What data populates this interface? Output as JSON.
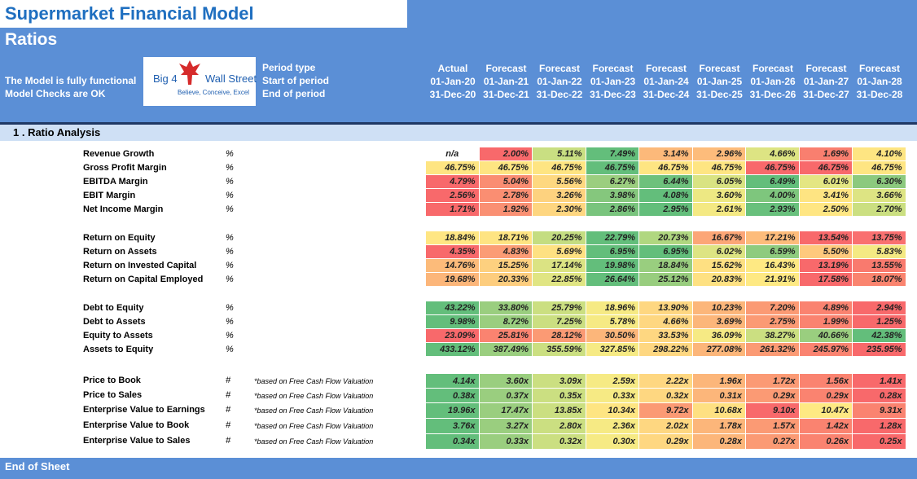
{
  "title": "Supermarket Financial Model",
  "subtitle": "Ratios",
  "status": [
    "The Model is fully functional",
    "Model Checks are OK"
  ],
  "logo": {
    "text_left": "Big 4",
    "text_right": "Wall Street",
    "tagline": "Believe, Conceive, Excel",
    "icon": "eagle-icon"
  },
  "period_labels": [
    "Period type",
    "Start of period",
    "End of period"
  ],
  "columns": [
    {
      "type": "Actual",
      "start": "01-Jan-20",
      "end": "31-Dec-20"
    },
    {
      "type": "Forecast",
      "start": "01-Jan-21",
      "end": "31-Dec-21"
    },
    {
      "type": "Forecast",
      "start": "01-Jan-22",
      "end": "31-Dec-22"
    },
    {
      "type": "Forecast",
      "start": "01-Jan-23",
      "end": "31-Dec-23"
    },
    {
      "type": "Forecast",
      "start": "01-Jan-24",
      "end": "31-Dec-24"
    },
    {
      "type": "Forecast",
      "start": "01-Jan-25",
      "end": "31-Dec-25"
    },
    {
      "type": "Forecast",
      "start": "01-Jan-26",
      "end": "31-Dec-26"
    },
    {
      "type": "Forecast",
      "start": "01-Jan-27",
      "end": "31-Dec-27"
    },
    {
      "type": "Forecast",
      "start": "01-Jan-28",
      "end": "31-Dec-28"
    }
  ],
  "section_title": "1 .  Ratio Analysis",
  "groups": [
    {
      "rows": [
        {
          "label": "Revenue Growth",
          "unit": "%",
          "note": "",
          "values": [
            "n/a",
            "2.00%",
            "5.11%",
            "7.49%",
            "3.14%",
            "2.96%",
            "4.66%",
            "1.69%",
            "4.10%"
          ],
          "colors": [
            "#ffffff",
            "#f8696b",
            "#c9df82",
            "#63be7b",
            "#fcb97a",
            "#fdbc7b",
            "#dde483",
            "#f97f6f",
            "#fee582"
          ]
        },
        {
          "label": "Gross Profit Margin",
          "unit": "%",
          "note": "",
          "values": [
            "46.75%",
            "46.75%",
            "46.75%",
            "46.75%",
            "46.75%",
            "46.75%",
            "46.75%",
            "46.75%",
            "46.75%"
          ],
          "colors": [
            "#fee582",
            "#fee582",
            "#fee582",
            "#63be7b",
            "#fee582",
            "#fee582",
            "#f8696b",
            "#f8696b",
            "#fee582"
          ]
        },
        {
          "label": "EBITDA Margin",
          "unit": "%",
          "note": "",
          "values": [
            "4.79%",
            "5.04%",
            "5.56%",
            "6.27%",
            "6.44%",
            "6.05%",
            "6.49%",
            "6.01%",
            "6.30%"
          ],
          "colors": [
            "#f8696b",
            "#fa8d72",
            "#fed880",
            "#9bce7f",
            "#6dc17c",
            "#d9e382",
            "#63be7b",
            "#e4e683",
            "#8cc97e"
          ]
        },
        {
          "label": "EBIT Margin",
          "unit": "%",
          "note": "",
          "values": [
            "2.56%",
            "2.78%",
            "3.26%",
            "3.98%",
            "4.08%",
            "3.60%",
            "4.00%",
            "3.41%",
            "3.66%"
          ],
          "colors": [
            "#f8696b",
            "#fa8e72",
            "#fdd27f",
            "#85c77d",
            "#63be7b",
            "#ede883",
            "#7ec67d",
            "#fee482",
            "#dde483"
          ]
        },
        {
          "label": "Net Income Margin",
          "unit": "%",
          "note": "",
          "values": [
            "1.71%",
            "1.92%",
            "2.30%",
            "2.86%",
            "2.95%",
            "2.61%",
            "2.93%",
            "2.50%",
            "2.70%"
          ],
          "colors": [
            "#f8696b",
            "#fa9073",
            "#fed680",
            "#79c47d",
            "#63be7b",
            "#f4e983",
            "#68c07c",
            "#ffe683",
            "#cbdf81"
          ]
        }
      ]
    },
    {
      "rows": [
        {
          "label": "Return on Equity",
          "unit": "%",
          "note": "",
          "values": [
            "18.84%",
            "18.71%",
            "20.25%",
            "22.79%",
            "20.73%",
            "16.67%",
            "17.21%",
            "13.54%",
            "13.75%"
          ],
          "colors": [
            "#ffe683",
            "#fee482",
            "#c4dd81",
            "#63be7b",
            "#b0d780",
            "#fca677",
            "#fdbc7b",
            "#f8696b",
            "#f97070"
          ]
        },
        {
          "label": "Return on Assets",
          "unit": "%",
          "note": "",
          "values": [
            "4.35%",
            "4.83%",
            "5.69%",
            "6.95%",
            "6.95%",
            "6.02%",
            "6.59%",
            "5.50%",
            "5.83%"
          ],
          "colors": [
            "#f8696b",
            "#fb9c75",
            "#fee182",
            "#63be7b",
            "#63be7b",
            "#dde483",
            "#8ecb7e",
            "#fec97d",
            "#f4e983"
          ]
        },
        {
          "label": "Return on Invested Capital",
          "unit": "%",
          "note": "",
          "values": [
            "14.76%",
            "15.25%",
            "17.14%",
            "19.98%",
            "18.84%",
            "15.62%",
            "16.43%",
            "13.19%",
            "13.55%"
          ],
          "colors": [
            "#fcbb7a",
            "#fdd07f",
            "#dbe383",
            "#63be7b",
            "#99ce7f",
            "#fee082",
            "#fee983",
            "#f8696b",
            "#f97a6e"
          ]
        },
        {
          "label": "Return on Capital Employed",
          "unit": "%",
          "note": "",
          "values": [
            "19.68%",
            "20.33%",
            "22.85%",
            "26.64%",
            "25.12%",
            "20.83%",
            "21.91%",
            "17.58%",
            "18.07%"
          ],
          "colors": [
            "#fcb67a",
            "#fdcd7e",
            "#e0e583",
            "#63be7b",
            "#98cd7e",
            "#fee182",
            "#fee983",
            "#f8696b",
            "#fa846f"
          ]
        }
      ]
    },
    {
      "rows": [
        {
          "label": "Debt to Equity",
          "unit": "%",
          "note": "",
          "values": [
            "43.22%",
            "33.80%",
            "25.79%",
            "18.96%",
            "13.90%",
            "10.23%",
            "7.20%",
            "4.89%",
            "2.94%"
          ],
          "colors": [
            "#63be7b",
            "#9ace7f",
            "#cbdf81",
            "#f6ea84",
            "#fed781",
            "#fcb67a",
            "#fb9a74",
            "#fa8370",
            "#f8696b"
          ]
        },
        {
          "label": "Debt to Assets",
          "unit": "%",
          "note": "",
          "values": [
            "9.98%",
            "8.72%",
            "7.25%",
            "5.78%",
            "4.66%",
            "3.69%",
            "2.75%",
            "1.99%",
            "1.25%"
          ],
          "colors": [
            "#63be7b",
            "#9ace7f",
            "#cbdf81",
            "#f6ea84",
            "#fed781",
            "#fcb67a",
            "#fb9a74",
            "#fa8370",
            "#f8696b"
          ]
        },
        {
          "label": "Equity to Assets",
          "unit": "%",
          "note": "",
          "values": [
            "23.09%",
            "25.81%",
            "28.12%",
            "30.50%",
            "33.53%",
            "36.09%",
            "38.27%",
            "40.66%",
            "42.38%"
          ],
          "colors": [
            "#f8696b",
            "#fa8370",
            "#fb9a74",
            "#fcb67a",
            "#fed781",
            "#f6ea84",
            "#cbdf81",
            "#9ace7f",
            "#63be7b"
          ]
        },
        {
          "label": "Assets to Equity",
          "unit": "%",
          "note": "",
          "values": [
            "433.12%",
            "387.49%",
            "355.59%",
            "327.85%",
            "298.22%",
            "277.08%",
            "261.32%",
            "245.97%",
            "235.95%"
          ],
          "colors": [
            "#63be7b",
            "#9ace7f",
            "#cbdf81",
            "#f6ea84",
            "#fed781",
            "#fcb67a",
            "#fb9a74",
            "#fa8370",
            "#f8696b"
          ]
        }
      ]
    },
    {
      "rows": [
        {
          "label": "Price to Book",
          "unit": "#",
          "note": "*based on Free Cash Flow Valuation",
          "values": [
            "4.14x",
            "3.60x",
            "3.09x",
            "2.59x",
            "2.22x",
            "1.96x",
            "1.72x",
            "1.56x",
            "1.41x"
          ],
          "colors": [
            "#63be7b",
            "#9ace7f",
            "#cbdf81",
            "#f6ea84",
            "#fed781",
            "#fcb67a",
            "#fb9a74",
            "#fa8370",
            "#f8696b"
          ]
        },
        {
          "label": "Price to Sales",
          "unit": "#",
          "note": "*based on Free Cash Flow Valuation",
          "values": [
            "0.38x",
            "0.37x",
            "0.35x",
            "0.33x",
            "0.32x",
            "0.31x",
            "0.29x",
            "0.29x",
            "0.28x"
          ],
          "colors": [
            "#63be7b",
            "#9ace7f",
            "#cbdf81",
            "#f6ea84",
            "#fed781",
            "#fcb67a",
            "#fb9a74",
            "#fa8370",
            "#f8696b"
          ]
        },
        {
          "label": "Enterprise Value to Earnings",
          "unit": "#",
          "note": "*based on Free Cash Flow Valuation",
          "values": [
            "19.96x",
            "17.47x",
            "13.85x",
            "10.34x",
            "9.72x",
            "10.68x",
            "9.10x",
            "10.47x",
            "9.31x"
          ],
          "colors": [
            "#63be7b",
            "#9ace7f",
            "#cbdf81",
            "#fee582",
            "#fb9a74",
            "#fee082",
            "#f8696b",
            "#fee983",
            "#fa8370"
          ]
        },
        {
          "label": "Enterprise Value to Book",
          "unit": "#",
          "note": "*based on Free Cash Flow Valuation",
          "values": [
            "3.76x",
            "3.27x",
            "2.80x",
            "2.36x",
            "2.02x",
            "1.78x",
            "1.57x",
            "1.42x",
            "1.28x"
          ],
          "colors": [
            "#63be7b",
            "#9ace7f",
            "#cbdf81",
            "#f6ea84",
            "#fed781",
            "#fcb67a",
            "#fb9a74",
            "#fa8370",
            "#f8696b"
          ]
        },
        {
          "label": "Enterprise Value to Sales",
          "unit": "#",
          "note": "*based on Free Cash Flow Valuation",
          "values": [
            "0.34x",
            "0.33x",
            "0.32x",
            "0.30x",
            "0.29x",
            "0.28x",
            "0.27x",
            "0.26x",
            "0.25x"
          ],
          "colors": [
            "#63be7b",
            "#9ace7f",
            "#cbdf81",
            "#f6ea84",
            "#fed781",
            "#fcb67a",
            "#fb9a74",
            "#fa8370",
            "#f8696b"
          ]
        }
      ]
    }
  ],
  "footer": "End of Sheet"
}
